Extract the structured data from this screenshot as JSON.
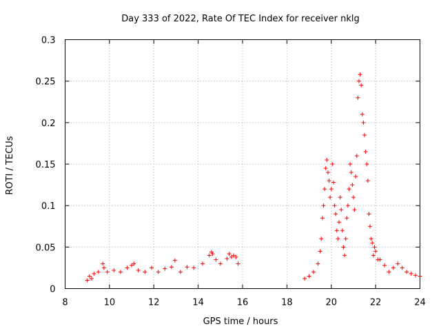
{
  "chart_data": {
    "type": "scatter",
    "title": "Day 333 of 2022, Rate Of TEC Index for receiver nklg",
    "xlabel": "GPS time / hours",
    "ylabel": "ROTI / TECUs",
    "xlim": [
      8,
      24
    ],
    "ylim": [
      0,
      0.3
    ],
    "xticks": [
      8,
      10,
      12,
      14,
      16,
      18,
      20,
      22,
      24
    ],
    "xtick_labels": [
      "8",
      "10",
      "12",
      "14",
      "16",
      "18",
      "20",
      "22",
      "24"
    ],
    "yticks": [
      0,
      0.05,
      0.1,
      0.15,
      0.2,
      0.25,
      0.3
    ],
    "ytick_labels": [
      "0",
      "0.05",
      "0.1",
      "0.15",
      "0.2",
      "0.25",
      "0.3"
    ],
    "grid": true,
    "marker": "+",
    "color": "#ff0000",
    "series": [
      {
        "name": "ROTI",
        "x": [
          9.0,
          9.1,
          9.2,
          9.3,
          9.5,
          9.7,
          9.75,
          9.9,
          10.2,
          10.5,
          10.8,
          11.0,
          11.1,
          11.3,
          11.6,
          11.9,
          12.2,
          12.5,
          12.8,
          12.95,
          13.2,
          13.5,
          13.8,
          14.2,
          14.5,
          14.6,
          14.65,
          14.8,
          15.0,
          15.3,
          15.4,
          15.5,
          15.6,
          15.7,
          15.8,
          18.8,
          19.0,
          19.2,
          19.4,
          19.5,
          19.55,
          19.6,
          19.65,
          19.7,
          19.75,
          19.8,
          19.85,
          19.9,
          19.95,
          20.0,
          20.05,
          20.1,
          20.15,
          20.2,
          20.25,
          20.3,
          20.35,
          20.4,
          20.45,
          20.5,
          20.55,
          20.6,
          20.65,
          20.7,
          20.75,
          20.8,
          20.85,
          20.9,
          20.95,
          21.0,
          21.05,
          21.1,
          21.15,
          21.2,
          21.25,
          21.3,
          21.35,
          21.4,
          21.45,
          21.5,
          21.55,
          21.6,
          21.65,
          21.7,
          21.75,
          21.8,
          21.85,
          21.9,
          21.95,
          22.0,
          22.1,
          22.2,
          22.4,
          22.6,
          22.8,
          23.0,
          23.2,
          23.4,
          23.6,
          23.8,
          24.0
        ],
        "y": [
          0.01,
          0.015,
          0.012,
          0.018,
          0.02,
          0.03,
          0.025,
          0.02,
          0.022,
          0.02,
          0.025,
          0.028,
          0.03,
          0.022,
          0.02,
          0.025,
          0.02,
          0.024,
          0.026,
          0.034,
          0.02,
          0.026,
          0.025,
          0.03,
          0.04,
          0.044,
          0.042,
          0.035,
          0.03,
          0.036,
          0.042,
          0.038,
          0.04,
          0.038,
          0.03,
          0.012,
          0.015,
          0.02,
          0.03,
          0.045,
          0.06,
          0.085,
          0.1,
          0.12,
          0.145,
          0.155,
          0.14,
          0.13,
          0.11,
          0.12,
          0.15,
          0.128,
          0.1,
          0.09,
          0.07,
          0.06,
          0.08,
          0.11,
          0.095,
          0.07,
          0.05,
          0.04,
          0.06,
          0.085,
          0.1,
          0.12,
          0.15,
          0.14,
          0.125,
          0.11,
          0.095,
          0.135,
          0.16,
          0.23,
          0.25,
          0.258,
          0.245,
          0.21,
          0.2,
          0.185,
          0.165,
          0.15,
          0.13,
          0.09,
          0.075,
          0.06,
          0.055,
          0.04,
          0.05,
          0.045,
          0.035,
          0.035,
          0.028,
          0.02,
          0.025,
          0.03,
          0.025,
          0.02,
          0.018,
          0.016,
          0.015
        ]
      }
    ]
  }
}
